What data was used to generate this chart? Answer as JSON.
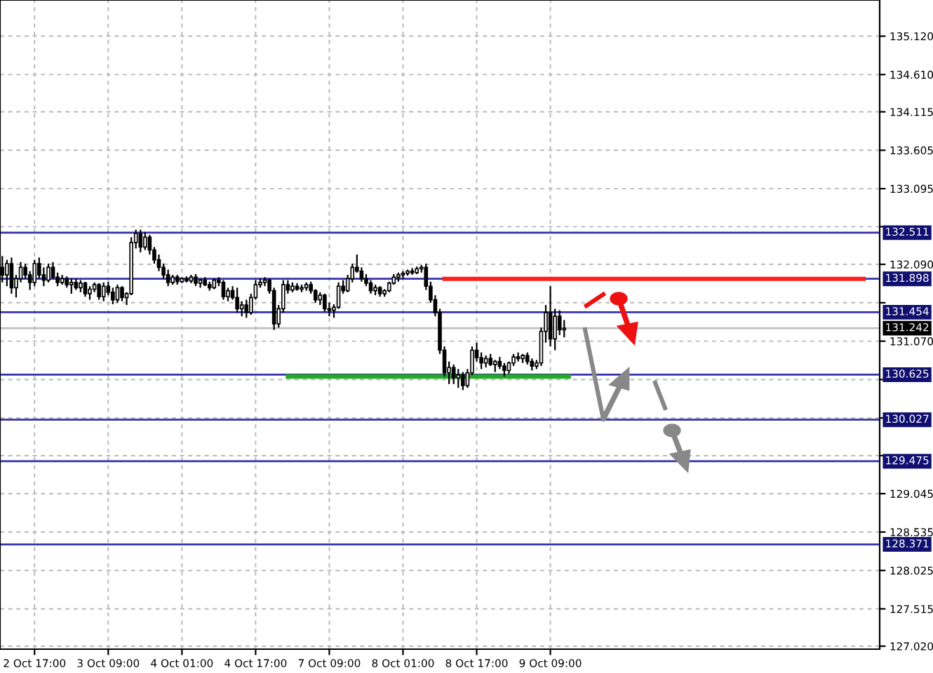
{
  "chart_data": {
    "type": "candlestick",
    "categories": [
      null,
      null,
      null,
      null,
      null,
      null,
      null,
      "2 Oct 17:00",
      null,
      null,
      null,
      null,
      null,
      null,
      null,
      null,
      null,
      null,
      null,
      null,
      null,
      null,
      null,
      "3 Oct 09:00",
      null,
      null,
      null,
      null,
      null,
      null,
      null,
      null,
      null,
      null,
      null,
      null,
      null,
      null,
      null,
      "4 Oct 01:00",
      null,
      null,
      null,
      null,
      null,
      null,
      null,
      null,
      null,
      null,
      null,
      null,
      null,
      null,
      null,
      "4 Oct 17:00",
      null,
      null,
      null,
      null,
      null,
      null,
      null,
      null,
      null,
      null,
      null,
      null,
      null,
      null,
      null,
      "7 Oct 09:00",
      null,
      null,
      null,
      null,
      null,
      null,
      null,
      null,
      null,
      null,
      null,
      null,
      null,
      null,
      null,
      "8 Oct 01:00",
      null,
      null,
      null,
      null,
      null,
      null,
      null,
      null,
      null,
      null,
      null,
      null,
      null,
      null,
      null,
      "8 Oct 17:00",
      null,
      null,
      null,
      null,
      null,
      null,
      null,
      null,
      null,
      null,
      null,
      null,
      null,
      null,
      null,
      "9 Oct 09:00",
      null,
      null,
      null,
      null,
      null,
      null,
      null,
      null,
      null,
      null,
      null,
      null,
      null,
      null,
      null,
      null,
      null,
      null,
      null,
      null,
      null,
      null,
      null,
      null,
      null,
      null,
      null,
      null,
      null,
      null,
      null,
      null,
      null,
      null,
      null,
      null,
      null,
      null,
      null,
      null,
      null,
      null,
      null,
      null,
      null,
      null,
      null,
      null,
      null,
      null,
      null,
      null,
      null,
      null,
      null,
      null,
      null,
      null,
      null,
      null,
      null,
      null,
      null,
      null,
      null,
      null,
      null,
      null,
      null,
      null,
      null
    ],
    "ohlc": [
      [
        132.05,
        132.2,
        131.85,
        131.95
      ],
      [
        131.95,
        132.15,
        131.8,
        132.1
      ],
      [
        132.1,
        132.18,
        131.7,
        131.78
      ],
      [
        131.78,
        131.95,
        131.65,
        131.9
      ],
      [
        131.9,
        132.12,
        131.85,
        132.05
      ],
      [
        132.05,
        132.1,
        131.9,
        131.95
      ],
      [
        131.95,
        132.0,
        131.75,
        131.85
      ],
      [
        131.85,
        132.15,
        131.8,
        132.1
      ],
      [
        132.1,
        132.18,
        131.9,
        131.95
      ],
      [
        131.95,
        132.05,
        131.8,
        131.88
      ],
      [
        131.88,
        132.1,
        131.85,
        132.05
      ],
      [
        132.05,
        132.12,
        131.9,
        131.92
      ],
      [
        131.92,
        131.98,
        131.8,
        131.85
      ],
      [
        131.85,
        131.95,
        131.82,
        131.9
      ],
      [
        131.9,
        131.93,
        131.78,
        131.82
      ],
      [
        131.82,
        131.9,
        131.7,
        131.85
      ],
      [
        131.85,
        131.9,
        131.75,
        131.78
      ],
      [
        131.78,
        131.88,
        131.72,
        131.84
      ],
      [
        131.84,
        131.86,
        131.66,
        131.7
      ],
      [
        131.7,
        131.8,
        131.62,
        131.76
      ],
      [
        131.76,
        131.85,
        131.72,
        131.82
      ],
      [
        131.82,
        131.84,
        131.62,
        131.66
      ],
      [
        131.66,
        131.85,
        131.6,
        131.8
      ],
      [
        131.8,
        131.86,
        131.68,
        131.72
      ],
      [
        131.72,
        131.78,
        131.56,
        131.62
      ],
      [
        131.62,
        131.82,
        131.58,
        131.78
      ],
      [
        131.78,
        131.8,
        131.6,
        131.65
      ],
      [
        131.65,
        131.72,
        131.55,
        131.7
      ],
      [
        131.7,
        132.45,
        131.68,
        132.38
      ],
      [
        132.38,
        132.55,
        132.3,
        132.5
      ],
      [
        132.5,
        132.55,
        132.25,
        132.32
      ],
      [
        132.32,
        132.52,
        132.28,
        132.45
      ],
      [
        132.45,
        132.48,
        132.22,
        132.28
      ],
      [
        132.28,
        132.32,
        132.1,
        132.15
      ],
      [
        132.15,
        132.22,
        132.0,
        132.05
      ],
      [
        132.05,
        132.1,
        131.9,
        131.95
      ],
      [
        131.95,
        132.02,
        131.8,
        131.85
      ],
      [
        131.85,
        131.95,
        131.82,
        131.92
      ],
      [
        131.92,
        131.95,
        131.82,
        131.86
      ],
      [
        131.86,
        131.92,
        131.84,
        131.9
      ],
      [
        131.9,
        131.93,
        131.85,
        131.87
      ],
      [
        131.87,
        131.95,
        131.84,
        131.92
      ],
      [
        131.92,
        131.96,
        131.8,
        131.84
      ],
      [
        131.84,
        131.9,
        131.78,
        131.88
      ],
      [
        131.88,
        131.92,
        131.8,
        131.82
      ],
      [
        131.82,
        131.86,
        131.74,
        131.78
      ],
      [
        131.78,
        131.9,
        131.76,
        131.88
      ],
      [
        131.88,
        131.92,
        131.8,
        131.85
      ],
      [
        131.85,
        131.88,
        131.62,
        131.66
      ],
      [
        131.66,
        131.78,
        131.6,
        131.74
      ],
      [
        131.74,
        131.8,
        131.62,
        131.65
      ],
      [
        131.65,
        131.78,
        131.45,
        131.5
      ],
      [
        131.5,
        131.6,
        131.4,
        131.55
      ],
      [
        131.55,
        131.62,
        131.38,
        131.45
      ],
      [
        131.45,
        131.7,
        131.42,
        131.65
      ],
      [
        131.65,
        131.88,
        131.62,
        131.82
      ],
      [
        131.82,
        131.9,
        131.78,
        131.85
      ],
      [
        131.85,
        131.92,
        131.8,
        131.88
      ],
      [
        131.88,
        131.9,
        131.7,
        131.74
      ],
      [
        131.74,
        131.78,
        131.22,
        131.3
      ],
      [
        131.3,
        131.55,
        131.25,
        131.5
      ],
      [
        131.5,
        131.88,
        131.45,
        131.82
      ],
      [
        131.82,
        131.88,
        131.7,
        131.75
      ],
      [
        131.75,
        131.85,
        131.72,
        131.8
      ],
      [
        131.8,
        131.84,
        131.74,
        131.76
      ],
      [
        131.76,
        131.82,
        131.72,
        131.78
      ],
      [
        131.78,
        131.85,
        131.74,
        131.82
      ],
      [
        131.82,
        131.86,
        131.7,
        131.74
      ],
      [
        131.74,
        131.76,
        131.58,
        131.62
      ],
      [
        131.62,
        131.72,
        131.55,
        131.68
      ],
      [
        131.68,
        131.7,
        131.46,
        131.5
      ],
      [
        131.5,
        131.58,
        131.4,
        131.48
      ],
      [
        131.48,
        131.56,
        131.38,
        131.52
      ],
      [
        131.52,
        131.85,
        131.5,
        131.8
      ],
      [
        131.8,
        131.88,
        131.7,
        131.74
      ],
      [
        131.74,
        131.95,
        131.72,
        131.9
      ],
      [
        131.9,
        132.1,
        131.85,
        132.05
      ],
      [
        132.05,
        132.22,
        131.98,
        132.0
      ],
      [
        132.0,
        132.05,
        131.86,
        131.9
      ],
      [
        131.9,
        131.96,
        131.8,
        131.84
      ],
      [
        131.84,
        131.88,
        131.7,
        131.74
      ],
      [
        131.74,
        131.82,
        131.68,
        131.78
      ],
      [
        131.78,
        131.8,
        131.66,
        131.7
      ],
      [
        131.7,
        131.76,
        131.66,
        131.74
      ],
      [
        131.74,
        131.86,
        131.72,
        131.84
      ],
      [
        131.84,
        131.96,
        131.82,
        131.92
      ],
      [
        131.92,
        131.98,
        131.86,
        131.95
      ],
      [
        131.95,
        132.0,
        131.9,
        131.97
      ],
      [
        131.97,
        132.02,
        131.94,
        132.0
      ],
      [
        132.0,
        132.04,
        131.95,
        131.98
      ],
      [
        131.98,
        132.06,
        131.96,
        132.03
      ],
      [
        132.03,
        132.08,
        131.98,
        132.05
      ],
      [
        132.05,
        132.1,
        131.75,
        131.8
      ],
      [
        131.8,
        131.86,
        131.58,
        131.62
      ],
      [
        131.62,
        131.68,
        131.4,
        131.45
      ],
      [
        131.45,
        131.5,
        130.9,
        130.95
      ],
      [
        130.95,
        131.0,
        130.6,
        130.65
      ],
      [
        130.65,
        130.8,
        130.5,
        130.72
      ],
      [
        130.72,
        130.76,
        130.5,
        130.58
      ],
      [
        130.58,
        130.7,
        130.45,
        130.62
      ],
      [
        130.62,
        130.66,
        130.42,
        130.48
      ],
      [
        130.48,
        130.7,
        130.45,
        130.65
      ],
      [
        130.65,
        131.0,
        130.62,
        130.95
      ],
      [
        130.95,
        131.05,
        130.8,
        130.85
      ],
      [
        130.85,
        130.92,
        130.7,
        130.78
      ],
      [
        130.78,
        130.88,
        130.72,
        130.84
      ],
      [
        130.84,
        130.9,
        130.74,
        130.76
      ],
      [
        130.76,
        130.82,
        130.66,
        130.8
      ],
      [
        130.8,
        130.86,
        130.7,
        130.74
      ],
      [
        130.74,
        130.78,
        130.6,
        130.68
      ],
      [
        130.68,
        130.8,
        130.64,
        130.78
      ],
      [
        130.78,
        130.9,
        130.74,
        130.86
      ],
      [
        130.86,
        130.92,
        130.8,
        130.84
      ],
      [
        130.84,
        130.9,
        130.78,
        130.88
      ],
      [
        130.88,
        130.92,
        130.76,
        130.8
      ],
      [
        130.8,
        130.84,
        130.68,
        130.74
      ],
      [
        130.74,
        130.82,
        130.7,
        130.78
      ],
      [
        130.78,
        131.25,
        130.74,
        131.2
      ],
      [
        131.2,
        131.55,
        131.05,
        131.45
      ],
      [
        131.45,
        131.8,
        131.0,
        131.1
      ],
      [
        131.1,
        131.5,
        130.95,
        131.4
      ],
      [
        131.4,
        131.48,
        131.15,
        131.22
      ],
      [
        131.22,
        131.35,
        131.12,
        131.24
      ],
      null,
      null,
      null,
      null,
      null,
      null,
      null,
      null,
      null,
      null,
      null,
      null,
      null,
      null,
      null,
      null,
      null,
      null,
      null,
      null,
      null,
      null,
      null,
      null,
      null,
      null,
      null,
      null,
      null,
      null,
      null,
      null,
      null,
      null,
      null,
      null,
      null,
      null,
      null,
      null,
      null,
      null,
      null,
      null,
      null,
      null,
      null,
      null,
      null,
      null,
      null,
      null,
      null,
      null,
      null,
      null,
      null,
      null,
      null,
      null,
      null,
      null,
      null,
      null,
      null,
      null,
      null,
      null
    ],
    "series": [
      {
        "type": "line",
        "color": "#ff2020",
        "values": [
          null,
          null,
          null,
          null,
          null,
          null,
          null,
          null,
          null,
          null,
          null,
          null,
          null,
          null,
          null,
          null,
          null,
          null,
          null,
          null,
          null,
          null,
          null,
          null,
          null,
          null,
          null,
          null,
          null,
          null,
          null,
          null,
          null,
          null,
          null,
          null,
          null,
          null,
          null,
          null,
          null,
          null,
          null,
          null,
          null,
          null,
          null,
          null,
          null,
          null,
          null,
          null,
          null,
          null,
          null,
          null,
          null,
          null,
          null,
          null,
          null,
          null,
          null,
          null,
          null,
          null,
          null,
          null,
          null,
          null,
          null,
          null,
          null,
          null,
          null,
          null,
          null,
          null,
          null,
          null,
          null,
          null,
          null,
          null,
          null,
          null,
          null,
          null,
          null,
          null,
          null,
          null,
          null,
          null,
          null,
          null,
          131.898,
          131.898,
          131.898,
          131.898,
          131.898,
          131.898,
          131.898,
          131.898,
          131.898,
          131.898,
          131.898,
          131.898,
          131.898,
          131.898,
          131.898,
          131.898,
          131.898,
          131.898,
          131.898,
          131.898,
          131.898,
          131.898,
          131.898,
          131.898,
          131.898,
          131.898,
          131.898,
          131.898,
          131.898,
          131.898,
          131.898,
          131.898,
          131.898,
          131.898,
          131.898,
          131.898,
          131.898,
          131.898,
          131.898,
          131.898,
          131.898,
          131.898,
          131.898,
          131.898,
          131.898,
          131.898,
          131.898,
          131.898,
          131.898,
          131.898,
          131.898,
          131.898,
          131.898,
          131.898,
          131.898,
          131.898,
          131.898,
          131.898,
          131.898,
          131.898,
          131.898,
          131.898,
          131.898,
          131.898,
          131.898,
          131.898,
          131.898,
          131.898,
          131.898,
          131.898,
          131.898,
          131.898,
          131.898,
          131.898,
          131.898,
          131.898,
          131.898,
          131.898,
          131.898,
          131.898,
          131.898,
          131.898,
          131.898,
          131.898,
          131.898,
          131.898,
          131.898,
          131.898,
          131.898,
          131.898,
          131.898,
          131.898,
          null,
          null,
          null
        ]
      },
      {
        "type": "line",
        "color": "#22aa22",
        "values": [
          null,
          null,
          null,
          null,
          null,
          null,
          null,
          null,
          null,
          null,
          null,
          null,
          null,
          null,
          null,
          null,
          null,
          null,
          null,
          null,
          null,
          null,
          null,
          null,
          null,
          null,
          null,
          null,
          null,
          null,
          null,
          null,
          null,
          null,
          null,
          null,
          null,
          null,
          null,
          null,
          null,
          null,
          null,
          null,
          null,
          null,
          null,
          null,
          null,
          null,
          null,
          null,
          null,
          null,
          null,
          null,
          null,
          null,
          null,
          null,
          null,
          null,
          130.6,
          130.6,
          130.6,
          130.6,
          130.6,
          130.6,
          130.6,
          130.6,
          130.6,
          130.6,
          130.6,
          130.6,
          130.6,
          130.6,
          130.6,
          130.6,
          130.6,
          130.6,
          130.6,
          130.6,
          130.6,
          130.6,
          130.6,
          130.6,
          130.6,
          130.6,
          130.6,
          130.6,
          130.6,
          130.6,
          130.6,
          130.6,
          130.6,
          130.6,
          130.6,
          130.6,
          130.6,
          130.6,
          130.6,
          130.6,
          130.6,
          130.6,
          130.6,
          130.6,
          130.6,
          130.6,
          130.6,
          130.6,
          130.6,
          130.6,
          130.6,
          130.6,
          130.6,
          130.6,
          130.6,
          130.6,
          130.6,
          130.6,
          130.6,
          130.6,
          130.6,
          130.6,
          null,
          null,
          null,
          null,
          null,
          null,
          null,
          null,
          null,
          null,
          null,
          null,
          null,
          null,
          null,
          null,
          null,
          null,
          null,
          null,
          null,
          null,
          null,
          null,
          null,
          null,
          null,
          null,
          null,
          null,
          null,
          null,
          null,
          null,
          null,
          null,
          null,
          null,
          null,
          null,
          null,
          null,
          null,
          null,
          null,
          null,
          null,
          null,
          null,
          null,
          null,
          null,
          null,
          null,
          null,
          null,
          null,
          null,
          null,
          null,
          null,
          null,
          null,
          null,
          null,
          null,
          null
        ]
      }
    ],
    "ref_lines": [
      {
        "axis": "y",
        "value": 132.511,
        "label": "132.511",
        "color": "#3333aa"
      },
      {
        "axis": "y",
        "value": 131.898,
        "label": "131.898",
        "color": "#3333aa"
      },
      {
        "axis": "y",
        "value": 131.454,
        "label": "131.454",
        "color": "#3333aa"
      },
      {
        "axis": "y",
        "value": 131.242,
        "label": "131.242",
        "color": "#c0c0c0"
      },
      {
        "axis": "y",
        "value": 130.625,
        "label": "130.625",
        "color": "#3333aa"
      },
      {
        "axis": "y",
        "value": 130.027,
        "label": "130.027",
        "color": "#3333aa"
      },
      {
        "axis": "y",
        "value": 129.475,
        "label": "129.475",
        "color": "#3333aa"
      },
      {
        "axis": "y",
        "value": 128.371,
        "label": "128.371",
        "color": "#3333aa"
      }
    ],
    "ylim": [
      126.98,
      135.6
    ],
    "yticks": [
      {
        "value": 127.02,
        "label": "127.020"
      },
      {
        "value": 127.515,
        "label": "127.515"
      },
      {
        "value": 128.025,
        "label": "128.025"
      },
      {
        "value": 128.535,
        "label": "128.535"
      },
      {
        "value": 129.045,
        "label": "129.045"
      },
      {
        "value": 129.55,
        "label": null
      },
      {
        "value": 130.05,
        "label": null
      },
      {
        "value": 130.56,
        "label": null
      },
      {
        "value": 131.07,
        "label": "131.070"
      },
      {
        "value": 131.58,
        "label": null
      },
      {
        "value": 132.09,
        "label": "132.090"
      },
      {
        "value": 132.59,
        "label": null
      },
      {
        "value": 133.095,
        "label": "133.095"
      },
      {
        "value": 133.605,
        "label": "133.605"
      },
      {
        "value": 134.115,
        "label": "134.115"
      },
      {
        "value": 134.61,
        "label": "134.610"
      },
      {
        "value": 135.12,
        "label": "135.120"
      }
    ],
    "grid": true
  }
}
